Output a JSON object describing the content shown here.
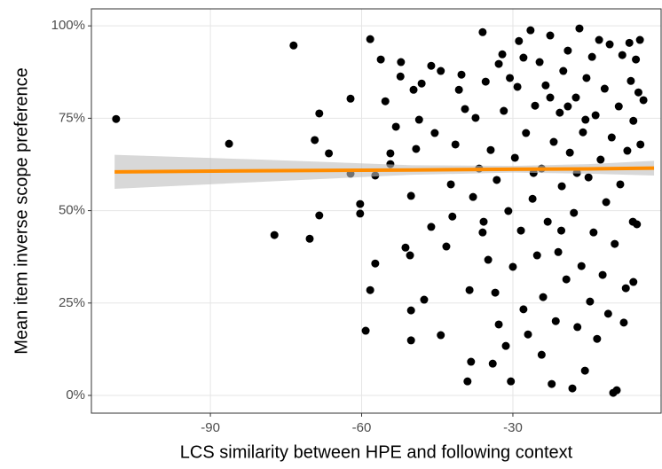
{
  "chart_data": {
    "type": "scatter",
    "x_label": "LCS similarity between HPE and following context",
    "y_label": "Mean item inverse scope preference",
    "xlim": [
      -113.6,
      -0.6
    ],
    "ylim": [
      -4.8,
      104.6
    ],
    "xticks": [
      -90,
      -60,
      -30
    ],
    "yticks": [
      {
        "value": 0,
        "label": "0%"
      },
      {
        "value": 25,
        "label": "25%"
      },
      {
        "value": 50,
        "label": "50%"
      },
      {
        "value": 75,
        "label": "75%"
      },
      {
        "value": 100,
        "label": "100%"
      }
    ],
    "grid": true,
    "series": [
      {
        "color": "#000000",
        "x": [
          -108.7,
          -86.3,
          -77.3,
          -73.5,
          -70.3,
          -69.3,
          -68.4,
          -68.4,
          -66.5,
          -62.2,
          -62.2,
          -60.3,
          -60.3,
          -58.3,
          -58.3,
          -57.3,
          -57.3,
          -56.2,
          -59.2,
          -55.3,
          -54.3,
          -54.3,
          -53.2,
          -52.3,
          -52.2,
          -51.3,
          -50.4,
          -50.2,
          -50.2,
          -50.2,
          -49.7,
          -49.2,
          -48.6,
          -48.1,
          -47.6,
          -46.2,
          -46.2,
          -45.5,
          -44.3,
          -44.3,
          -43.2,
          -42.3,
          -42.0,
          -41.4,
          -40.7,
          -40.2,
          -39.5,
          -39.0,
          -38.6,
          -38.3,
          -37.9,
          -37.4,
          -36.7,
          -36.0,
          -36.0,
          -35.4,
          -34.9,
          -34.4,
          -34.0,
          -33.5,
          -33.2,
          -32.8,
          -32.1,
          -31.8,
          -31.4,
          -30.9,
          -30.4,
          -30.0,
          -29.6,
          -29.1,
          -28.8,
          -28.4,
          -27.9,
          -27.4,
          -27.0,
          -26.5,
          -26.1,
          -25.6,
          -25.2,
          -24.7,
          -24.3,
          -24.0,
          -23.5,
          -23.1,
          -22.6,
          -22.3,
          -21.9,
          -21.5,
          -21.0,
          -20.7,
          -20.3,
          -20.0,
          -19.4,
          -19.1,
          -18.7,
          -18.2,
          -17.9,
          -17.5,
          -17.2,
          -16.8,
          -16.4,
          -16.1,
          -15.7,
          -15.4,
          -15.0,
          -14.7,
          -14.3,
          -14.0,
          -13.6,
          -13.3,
          -12.9,
          -12.6,
          -12.2,
          -11.8,
          -11.5,
          -11.1,
          -10.8,
          -10.4,
          -10.1,
          -9.8,
          -9.4,
          -9.0,
          -8.7,
          -8.3,
          -8.0,
          -7.6,
          -7.3,
          -6.9,
          -6.6,
          -6.2,
          -6.1,
          -6.1,
          -5.6,
          -5.4,
          -5.1,
          -4.8,
          -4.7,
          -4.1,
          -32.8,
          -30.6,
          -27.9,
          -22.6,
          -19.1,
          -15.6,
          -25.9,
          -17.3,
          -35.8,
          -20.4,
          -24.3
        ],
        "values": [
          74.8,
          68.1,
          43.4,
          94.7,
          42.4,
          69.1,
          76.3,
          48.7,
          65.5,
          80.3,
          60.0,
          51.8,
          49.2,
          96.4,
          28.5,
          59.5,
          35.7,
          90.9,
          17.5,
          79.6,
          65.5,
          62.6,
          72.7,
          86.3,
          90.2,
          40.0,
          37.9,
          54.0,
          23.0,
          14.9,
          82.7,
          66.7,
          74.6,
          84.4,
          25.9,
          89.2,
          45.6,
          71.0,
          16.3,
          87.8,
          40.3,
          57.1,
          48.4,
          67.9,
          82.7,
          86.8,
          77.5,
          3.8,
          28.5,
          9.1,
          53.7,
          75.1,
          61.4,
          98.3,
          44.1,
          84.9,
          36.7,
          66.4,
          8.6,
          27.8,
          58.3,
          19.2,
          92.3,
          77.0,
          13.4,
          49.9,
          3.8,
          34.8,
          64.3,
          83.5,
          95.9,
          44.6,
          23.3,
          71.0,
          16.5,
          98.8,
          53.2,
          78.4,
          37.9,
          90.2,
          61.4,
          26.6,
          83.9,
          47.0,
          97.4,
          3.1,
          68.6,
          20.1,
          38.8,
          76.5,
          56.6,
          87.8,
          31.4,
          93.3,
          65.7,
          1.9,
          49.4,
          80.6,
          18.5,
          99.3,
          35.0,
          71.2,
          6.7,
          85.9,
          59.0,
          25.4,
          91.6,
          44.1,
          75.8,
          15.3,
          96.2,
          63.8,
          32.6,
          83.0,
          52.3,
          22.1,
          95.0,
          69.8,
          0.7,
          41.0,
          1.4,
          78.2,
          57.1,
          92.1,
          19.7,
          29.0,
          66.2,
          95.4,
          85.1,
          47.0,
          74.3,
          30.7,
          90.9,
          46.3,
          82.0,
          96.2,
          67.9,
          79.9,
          89.7,
          85.9,
          91.4,
          80.6,
          78.2,
          74.6,
          60.2,
          60.2,
          47.0,
          44.6,
          11.0
        ]
      }
    ],
    "fit": {
      "color": "#ff8c00",
      "band_color": "#bebebe",
      "x": [
        -109,
        -80,
        -50,
        -30,
        -15,
        -2
      ],
      "values": [
        60.5,
        60.8,
        61.0,
        61.2,
        61.3,
        61.5
      ],
      "lower": [
        55.9,
        57.8,
        59.7,
        60.3,
        60.0,
        59.5
      ],
      "upper": [
        65.1,
        63.8,
        62.3,
        62.1,
        62.6,
        63.5
      ]
    }
  }
}
